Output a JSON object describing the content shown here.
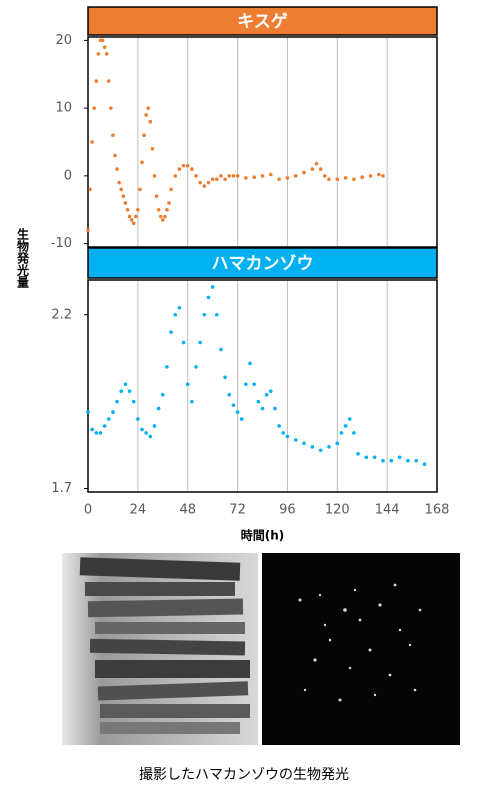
{
  "chart_data": [
    {
      "type": "scatter",
      "title": "キスゲ",
      "color": "#ed7d31",
      "ylabel": "生物発光量",
      "xlim": [
        0,
        168
      ],
      "xticks": [
        0,
        24,
        48,
        72,
        96,
        120,
        144,
        168
      ],
      "ylim": [
        -10.5,
        20.5
      ],
      "yticks": [
        -10,
        0,
        10,
        20
      ],
      "grid": true,
      "x": [
        0,
        1,
        2,
        3,
        4,
        5,
        6,
        7,
        8,
        9,
        10,
        11,
        12,
        13,
        14,
        15,
        16,
        17,
        18,
        19,
        20,
        21,
        22,
        23,
        24,
        25,
        26,
        27,
        28,
        29,
        30,
        31,
        32,
        33,
        34,
        35,
        36,
        37,
        38,
        39,
        40,
        42,
        44,
        46,
        48,
        50,
        52,
        54,
        56,
        58,
        60,
        62,
        64,
        66,
        68,
        70,
        72,
        76,
        80,
        84,
        88,
        92,
        96,
        100,
        104,
        108,
        110,
        112,
        114,
        116,
        120,
        124,
        128,
        132,
        136,
        140,
        142
      ],
      "values": [
        -8,
        -2,
        5,
        10,
        14,
        18,
        20,
        20,
        19,
        18,
        14,
        10,
        6,
        3,
        1,
        -1,
        -2,
        -3,
        -4,
        -5,
        -6,
        -6.5,
        -7,
        -6,
        -5,
        -2,
        2,
        6,
        9,
        10,
        8,
        4,
        0,
        -3,
        -5,
        -6,
        -6.5,
        -6,
        -5,
        -4,
        -2,
        0,
        1,
        1.5,
        1.5,
        1,
        0,
        -1,
        -1.5,
        -1,
        -0.5,
        -0.5,
        0,
        -0.5,
        0,
        0,
        0,
        -0.3,
        -0.2,
        0,
        0.2,
        -0.5,
        -0.3,
        0,
        0.5,
        1,
        1.8,
        1,
        0,
        -0.5,
        -0.5,
        -0.3,
        -0.5,
        -0.2,
        0,
        0.2,
        0
      ]
    },
    {
      "type": "scatter",
      "title": "ハマカンゾウ",
      "color": "#00b0f0",
      "xlabel": "時間(h)",
      "xlim": [
        0,
        168
      ],
      "xticks": [
        0,
        24,
        48,
        72,
        96,
        120,
        144,
        168
      ],
      "ylim": [
        1.69,
        2.3
      ],
      "yticks": [
        1.7,
        2.2
      ],
      "grid": true,
      "x": [
        0,
        2,
        4,
        6,
        8,
        10,
        12,
        14,
        16,
        18,
        20,
        22,
        24,
        26,
        28,
        30,
        32,
        34,
        36,
        38,
        40,
        42,
        44,
        46,
        48,
        50,
        52,
        54,
        56,
        58,
        60,
        62,
        64,
        66,
        68,
        70,
        72,
        74,
        76,
        78,
        80,
        82,
        84,
        86,
        88,
        90,
        92,
        94,
        96,
        100,
        104,
        108,
        112,
        116,
        120,
        122,
        124,
        126,
        128,
        130,
        134,
        138,
        142,
        146,
        150,
        154,
        158,
        162
      ],
      "values": [
        1.92,
        1.87,
        1.86,
        1.86,
        1.88,
        1.9,
        1.92,
        1.95,
        1.98,
        2.0,
        1.98,
        1.95,
        1.9,
        1.87,
        1.86,
        1.85,
        1.88,
        1.93,
        1.97,
        2.05,
        2.15,
        2.2,
        2.22,
        2.12,
        2.0,
        1.95,
        2.05,
        2.12,
        2.2,
        2.25,
        2.28,
        2.2,
        2.1,
        2.02,
        1.97,
        1.94,
        1.92,
        1.9,
        2.0,
        2.06,
        2.0,
        1.95,
        1.93,
        1.97,
        1.98,
        1.93,
        1.88,
        1.86,
        1.85,
        1.84,
        1.83,
        1.82,
        1.81,
        1.82,
        1.83,
        1.86,
        1.88,
        1.9,
        1.86,
        1.8,
        1.79,
        1.79,
        1.78,
        1.78,
        1.79,
        1.78,
        1.78,
        1.77
      ]
    }
  ],
  "caption": "撮影したハマカンゾウの生物発光"
}
